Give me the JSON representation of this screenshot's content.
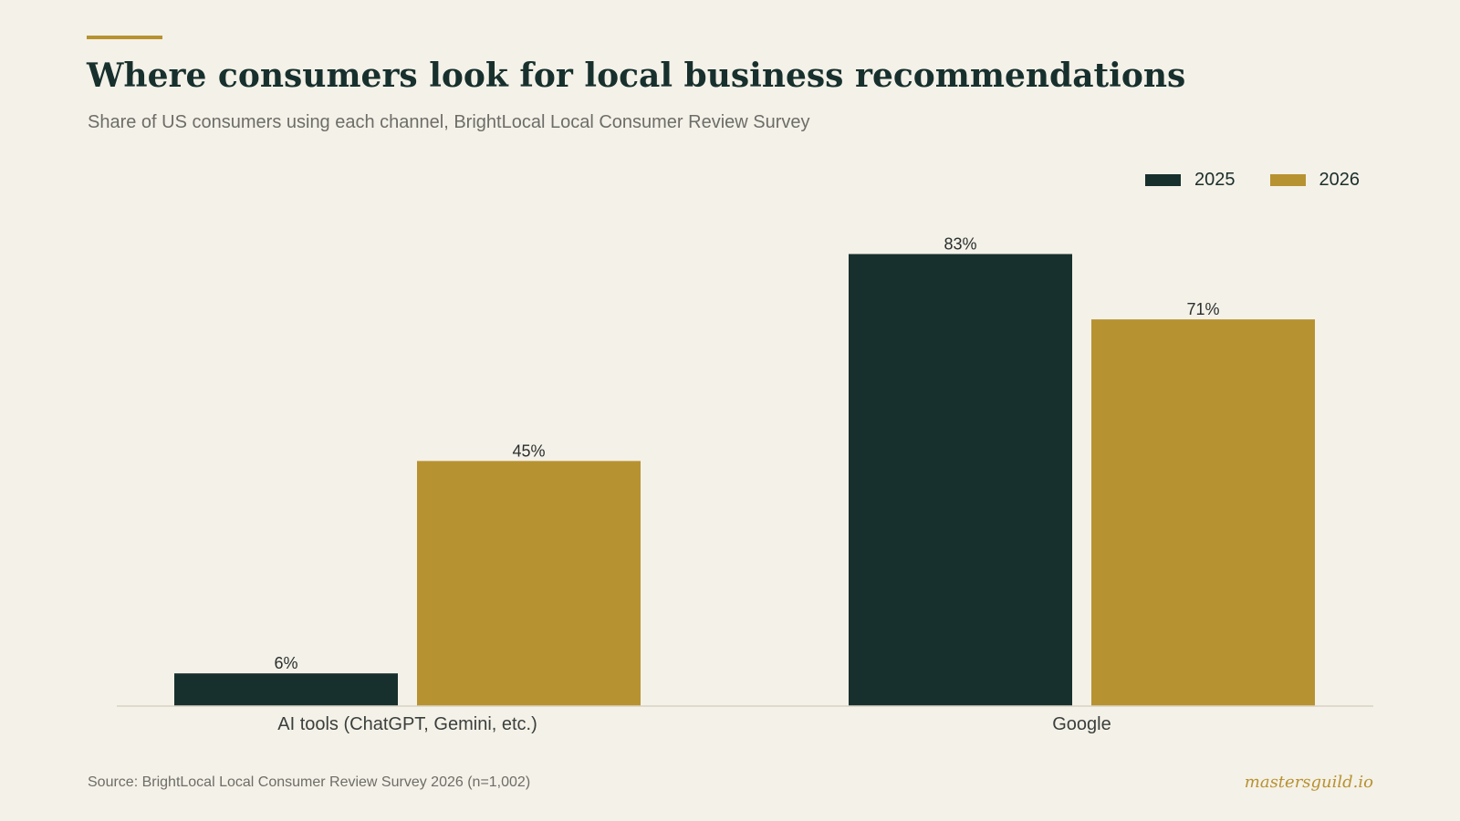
{
  "header": {
    "title": "Where consumers look for local business recommendations",
    "subtitle": "Share of US consumers using each channel, BrightLocal Local Consumer Review Survey"
  },
  "footer": {
    "source": "Source: BrightLocal Local Consumer Review Survey 2026 (n=1,002)",
    "brand": "mastersguild.io"
  },
  "colors": {
    "background": "#f4f1e8",
    "series_2025": "#17302d",
    "series_2026": "#b79230",
    "accent": "#b79230"
  },
  "chart_data": {
    "type": "bar",
    "title": "Where consumers look for local business recommendations",
    "subtitle": "Share of US consumers using each channel, BrightLocal Local Consumer Review Survey",
    "categories": [
      "AI tools (ChatGPT, Gemini, etc.)",
      "Google"
    ],
    "series": [
      {
        "name": "2025",
        "values": [
          6,
          83
        ],
        "labels": [
          "6%",
          "83%"
        ],
        "color": "#17302d"
      },
      {
        "name": "2026",
        "values": [
          45,
          71
        ],
        "labels": [
          "45%",
          "71%"
        ],
        "color": "#b79230"
      }
    ],
    "ylim": [
      0,
      100
    ],
    "grid": false,
    "legend_position": "top-right",
    "xlabel": "",
    "ylabel": ""
  }
}
